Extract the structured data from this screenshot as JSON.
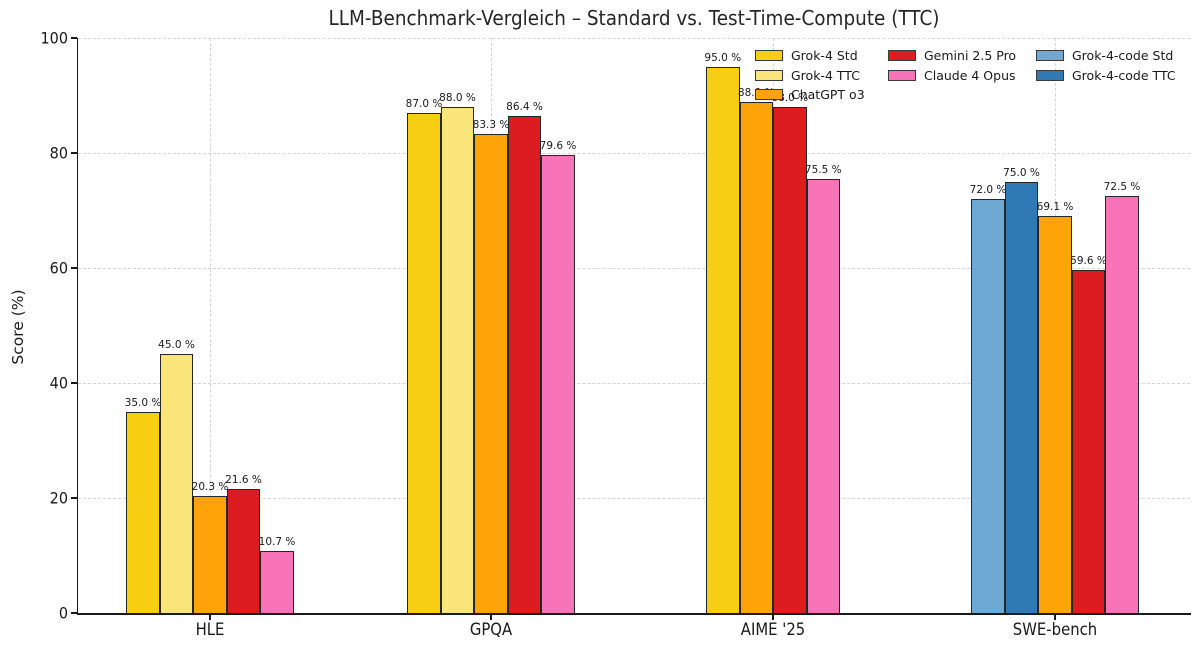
{
  "title": "LLM-Benchmark-Vergleich – Standard vs. Test-Time-Compute (TTC)",
  "y_axis": {
    "label": "Score (%)",
    "ticks": [
      "0",
      "20",
      "40",
      "60",
      "80",
      "100"
    ],
    "min": 0,
    "max": 100
  },
  "x_axis": {
    "categories": [
      "HLE",
      "GPQA",
      "AIME '25",
      "SWE-bench"
    ]
  },
  "legend": {
    "columns": [
      [
        "Grok-4 Std",
        "Grok-4 TTC",
        "ChatGPT o3"
      ],
      [
        "Gemini 2.5 Pro",
        "Claude 4 Opus"
      ],
      [
        "Grok-4-code Std",
        "Grok-4-code TTC"
      ]
    ]
  },
  "colors": {
    "bar_edge": "#262626",
    "grid": "#d4d4d4"
  },
  "chart_data": {
    "type": "bar",
    "title": "LLM-Benchmark-Vergleich – Standard vs. Test-Time-Compute (TTC)",
    "xlabel": "",
    "ylabel": "Score (%)",
    "ylim": [
      0,
      100
    ],
    "grid": "dashed, horizontal at 20/40/60/80/100 and vertical at each category center",
    "legend_position": "upper right, 3 columns, no frame",
    "value_label_format": "{value} %",
    "categories": [
      "HLE",
      "GPQA",
      "AIME '25",
      "SWE-bench"
    ],
    "series": [
      {
        "name": "Grok-4 Std",
        "color": "#F7CE12",
        "values": [
          35.0,
          87.0,
          95.0,
          null
        ],
        "labels": [
          "35.0 %",
          "87.0 %",
          "95.0 %",
          null
        ]
      },
      {
        "name": "Grok-4 TTC",
        "color": "#FAE57A",
        "values": [
          45.0,
          88.0,
          null,
          null
        ],
        "labels": [
          "45.0 %",
          "88.0 %",
          null,
          null
        ]
      },
      {
        "name": "Grok-4-code Std",
        "color": "#6EA9D3",
        "values": [
          null,
          null,
          null,
          72.0
        ],
        "labels": [
          null,
          null,
          null,
          "72.0 %"
        ]
      },
      {
        "name": "Grok-4-code TTC",
        "color": "#2F79B5",
        "values": [
          null,
          null,
          null,
          75.0
        ],
        "labels": [
          null,
          null,
          null,
          "75.0 %"
        ]
      },
      {
        "name": "ChatGPT o3",
        "color": "#FFA408",
        "values": [
          20.3,
          83.3,
          88.9,
          69.1
        ],
        "labels": [
          "20.3 %",
          "83.3 %",
          "88.9 %",
          "69.1 %"
        ]
      },
      {
        "name": "Gemini 2.5 Pro",
        "color": "#DC1C20",
        "values": [
          21.6,
          86.4,
          88.0,
          59.6
        ],
        "labels": [
          "21.6 %",
          "86.4 %",
          "88.0 %",
          "59.6 %"
        ]
      },
      {
        "name": "Claude 4 Opus",
        "color": "#F973B9",
        "values": [
          10.7,
          79.6,
          75.5,
          72.5
        ],
        "labels": [
          "10.7 %",
          "79.6 %",
          "75.5 %",
          "72.5 %"
        ]
      }
    ]
  }
}
